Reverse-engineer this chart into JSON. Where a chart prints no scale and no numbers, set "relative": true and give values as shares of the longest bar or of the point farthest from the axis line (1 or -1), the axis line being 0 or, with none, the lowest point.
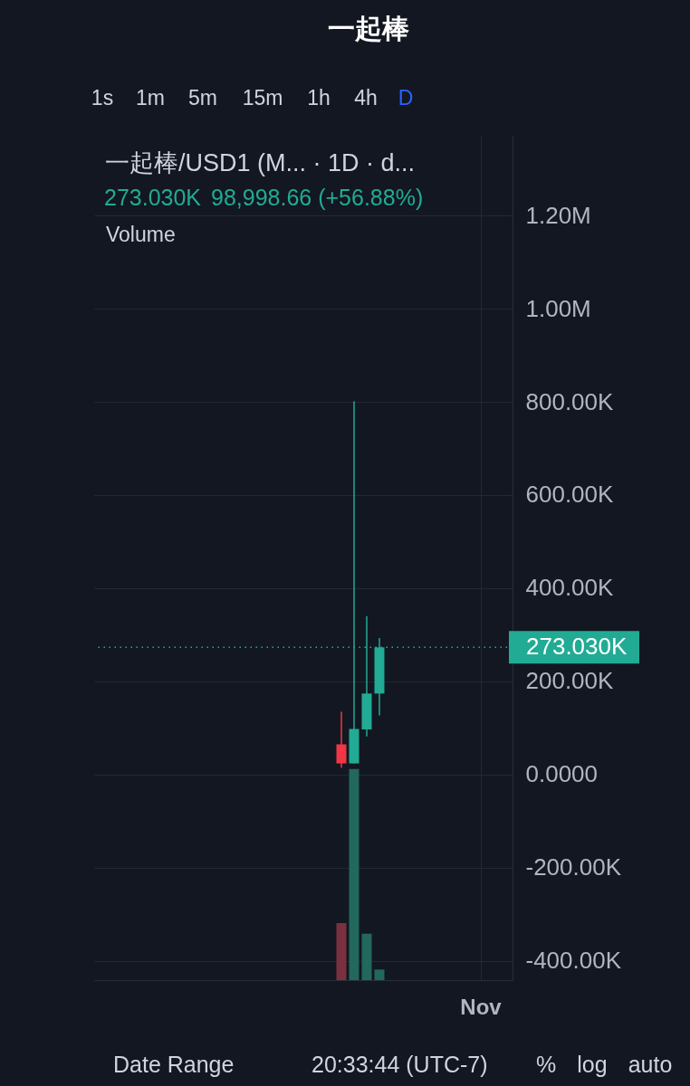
{
  "chart_data": [
    {
      "type": "candlestick",
      "title": "一起棒/USD1 (M... · 1D · d...",
      "categories": [
        null,
        null,
        null,
        null,
        null,
        null,
        null,
        null,
        null,
        null,
        null,
        null,
        null,
        null,
        null,
        null,
        null,
        null,
        null,
        null,
        null,
        null,
        null,
        null,
        null,
        null,
        null,
        null,
        null,
        null,
        "Nov",
        null,
        null
      ],
      "ohlc": [
        null,
        null,
        null,
        null,
        null,
        null,
        null,
        null,
        null,
        null,
        null,
        null,
        null,
        null,
        null,
        null,
        null,
        null,
        null,
        [
          65000,
          135000,
          15000,
          24000
        ],
        [
          24000,
          801000,
          24000,
          98000
        ],
        [
          97000,
          340000,
          82000,
          174000
        ],
        [
          174000,
          293000,
          127000,
          273030
        ],
        null,
        null,
        null,
        null,
        null,
        null,
        null,
        null,
        null,
        null
      ],
      "colors": [
        null,
        null,
        null,
        null,
        null,
        null,
        null,
        null,
        null,
        null,
        null,
        null,
        null,
        null,
        null,
        null,
        null,
        null,
        null,
        "#f23645",
        "#22ab94",
        "#22ab94",
        "#22ab94",
        null,
        null,
        null,
        null,
        null,
        null,
        null,
        null,
        null,
        null
      ],
      "ylim": [
        -441000,
        1371000
      ],
      "yticks": [
        {
          "value": -400000,
          "label": "-400.00K"
        },
        {
          "value": -200000,
          "label": "-200.00K"
        },
        {
          "value": 0,
          "label": "0.0000"
        },
        {
          "value": 200000,
          "label": "200.00K"
        },
        {
          "value": 400000,
          "label": "400.00K"
        },
        {
          "value": 600000,
          "label": "600.00K"
        },
        {
          "value": 800000,
          "label": "800.00K"
        },
        {
          "value": 1000000,
          "label": "1.00M"
        },
        {
          "value": 1200000,
          "label": "1.20M"
        }
      ],
      "grid": true,
      "ref_lines": [
        {
          "axis": "y",
          "value": 273030,
          "label": "273.030K",
          "color": "#22ab94",
          "line_style": "dotted"
        }
      ],
      "annotations": [
        "一起棒",
        "273.030K",
        "98,998.66 (+56.88%)",
        "1s",
        "1m",
        "5m",
        "15m",
        "1h",
        "4h",
        "D",
        "Date Range",
        "20:33:44 (UTC-7)",
        "%",
        "log",
        "auto"
      ]
    },
    {
      "type": "bar",
      "title": "Volume",
      "categories": [
        null,
        null,
        null,
        null,
        null,
        null,
        null,
        null,
        null,
        null,
        null,
        null,
        null,
        null,
        null,
        null,
        null,
        null,
        null,
        null,
        null,
        null,
        null,
        null,
        null,
        null,
        null,
        null,
        null,
        null,
        null,
        null,
        null
      ],
      "values": [
        null,
        null,
        null,
        null,
        null,
        null,
        null,
        null,
        null,
        null,
        null,
        null,
        null,
        null,
        null,
        null,
        null,
        null,
        null,
        0.27,
        1,
        0.22,
        0.05,
        null,
        null,
        null,
        null,
        null,
        null,
        null,
        null,
        null,
        null
      ],
      "colors": [
        null,
        null,
        null,
        null,
        null,
        null,
        null,
        null,
        null,
        null,
        null,
        null,
        null,
        null,
        null,
        null,
        null,
        null,
        null,
        "#7b3040",
        "#22685c",
        "#22685c",
        "#22685c",
        null,
        null,
        null,
        null,
        null,
        null,
        null,
        null,
        null,
        null
      ],
      "relative": true
    }
  ]
}
